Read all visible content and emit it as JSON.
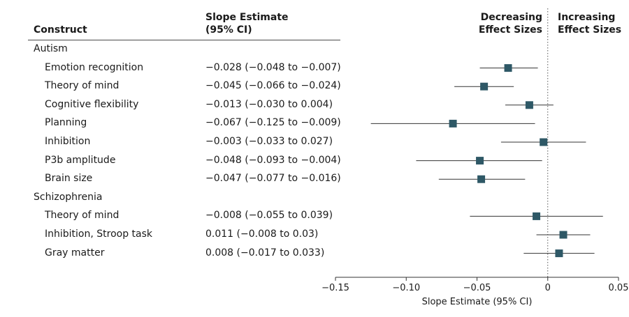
{
  "table": {
    "col1_header": "Construct",
    "col2_header_line1": "Slope Estimate",
    "col2_header_line2": "(95% CI)"
  },
  "annotations": {
    "left_line1": "Decreasing",
    "left_line2": "Effect Sizes",
    "right_line1": "Increasing",
    "right_line2": "Effect Sizes"
  },
  "chart_data": {
    "type": "forest",
    "xlabel": "Slope Estimate (95% CI)",
    "xlim": [
      -0.15,
      0.05
    ],
    "x_ticks": [
      -0.15,
      -0.1,
      -0.05,
      0,
      0.05
    ],
    "x_tick_labels": [
      "−0.15",
      "−0.10",
      "−0.05",
      "0",
      "0.05"
    ],
    "reference_line": 0,
    "marker_color": "#2e5866",
    "groups": [
      {
        "name": "Autism",
        "rows": [
          {
            "label": "Emotion recognition",
            "estimate": -0.028,
            "lower": -0.048,
            "upper": -0.007,
            "ci_text": "−0.028 (−0.048 to −0.007)"
          },
          {
            "label": "Theory of mind",
            "estimate": -0.045,
            "lower": -0.066,
            "upper": -0.024,
            "ci_text": "−0.045 (−0.066 to −0.024)"
          },
          {
            "label": "Cognitive flexibility",
            "estimate": -0.013,
            "lower": -0.03,
            "upper": 0.004,
            "ci_text": "−0.013 (−0.030 to 0.004)"
          },
          {
            "label": "Planning",
            "estimate": -0.067,
            "lower": -0.125,
            "upper": -0.009,
            "ci_text": "−0.067 (−0.125 to −0.009)"
          },
          {
            "label": "Inhibition",
            "estimate": -0.003,
            "lower": -0.033,
            "upper": 0.027,
            "ci_text": "−0.003 (−0.033 to 0.027)"
          },
          {
            "label": "P3b amplitude",
            "estimate": -0.048,
            "lower": -0.093,
            "upper": -0.004,
            "ci_text": "−0.048 (−0.093 to −0.004)"
          },
          {
            "label": "Brain size",
            "estimate": -0.047,
            "lower": -0.077,
            "upper": -0.016,
            "ci_text": "−0.047 (−0.077 to −0.016)"
          }
        ]
      },
      {
        "name": "Schizophrenia",
        "rows": [
          {
            "label": "Theory of mind",
            "estimate": -0.008,
            "lower": -0.055,
            "upper": 0.039,
            "ci_text": "−0.008 (−0.055 to 0.039)"
          },
          {
            "label": "Inhibition, Stroop task",
            "estimate": 0.011,
            "lower": -0.008,
            "upper": 0.03,
            "ci_text": "0.011 (−0.008 to 0.03)"
          },
          {
            "label": "Gray matter",
            "estimate": 0.008,
            "lower": -0.017,
            "upper": 0.033,
            "ci_text": "0.008 (−0.017 to 0.033)"
          }
        ]
      }
    ]
  }
}
